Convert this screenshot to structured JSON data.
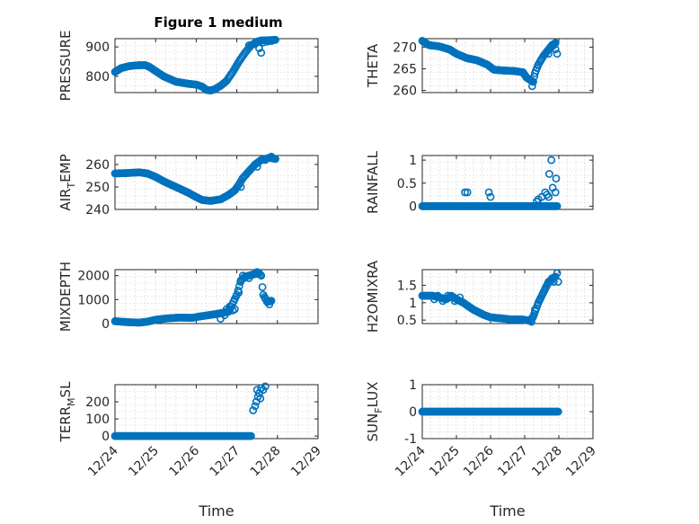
{
  "chart_data": {
    "type": "scatter",
    "title": "Figure 1 medium",
    "marker_color": "#0072BD",
    "x_unit": "days since 12/24",
    "xlim": [
      0,
      5
    ],
    "xticks": [
      0,
      1,
      2,
      3,
      4,
      5
    ],
    "xticklabels": [
      "12/24",
      "12/25",
      "12/26",
      "12/27",
      "12/28",
      "12/29"
    ],
    "xlabel": "Time",
    "panels": [
      {
        "id": "pressure",
        "ylabel": "PRESSURE",
        "ylim": [
          745,
          928
        ],
        "yticks": [
          800,
          900
        ],
        "yticklabels": [
          "800",
          "900"
        ],
        "anchors": [
          [
            0.0,
            815
          ],
          [
            0.15,
            828
          ],
          [
            0.35,
            835
          ],
          [
            0.6,
            838
          ],
          [
            0.75,
            838
          ],
          [
            0.85,
            832
          ],
          [
            1.0,
            818
          ],
          [
            1.2,
            800
          ],
          [
            1.5,
            782
          ],
          [
            1.8,
            775
          ],
          [
            2.0,
            772
          ],
          [
            2.15,
            765
          ],
          [
            2.25,
            754
          ],
          [
            2.35,
            752
          ],
          [
            2.45,
            756
          ],
          [
            2.6,
            768
          ],
          [
            2.75,
            785
          ],
          [
            2.9,
            815
          ],
          [
            3.05,
            850
          ],
          [
            3.2,
            880
          ],
          [
            3.35,
            905
          ],
          [
            3.5,
            918
          ],
          [
            3.6,
            922
          ],
          [
            3.85,
            923
          ],
          [
            3.95,
            924
          ]
        ],
        "extra": [
          [
            3.3,
            905
          ],
          [
            3.45,
            910
          ],
          [
            3.55,
            895
          ],
          [
            3.6,
            880
          ],
          [
            3.65,
            915
          ],
          [
            3.75,
            918
          ],
          [
            3.85,
            920
          ]
        ]
      },
      {
        "id": "theta",
        "ylabel": "THETA",
        "ylim": [
          259.5,
          272
        ],
        "yticks": [
          260,
          265,
          270
        ],
        "yticklabels": [
          "260",
          "265",
          "270"
        ],
        "anchors": [
          [
            0.0,
            271.5
          ],
          [
            0.2,
            270.5
          ],
          [
            0.5,
            270.2
          ],
          [
            0.8,
            269.5
          ],
          [
            1.0,
            268.5
          ],
          [
            1.3,
            267.5
          ],
          [
            1.6,
            267.0
          ],
          [
            1.9,
            266.0
          ],
          [
            2.1,
            264.8
          ],
          [
            2.4,
            264.6
          ],
          [
            2.7,
            264.5
          ],
          [
            2.95,
            264.2
          ],
          [
            3.05,
            263.0
          ],
          [
            3.15,
            262.5
          ],
          [
            3.25,
            262.0
          ],
          [
            3.3,
            264.0
          ],
          [
            3.4,
            266.0
          ],
          [
            3.55,
            268.0
          ],
          [
            3.7,
            269.5
          ],
          [
            3.8,
            270.5
          ],
          [
            3.9,
            271.0
          ]
        ],
        "extra": [
          [
            3.22,
            261.0
          ],
          [
            3.7,
            268.5
          ],
          [
            3.78,
            270.0
          ],
          [
            3.85,
            270.5
          ],
          [
            3.9,
            269.5
          ],
          [
            3.95,
            268.5
          ]
        ]
      },
      {
        "id": "air_temp",
        "ylabel": "AIR_TEMP",
        "ylabel_parts": [
          "AIR",
          "T",
          "EMP"
        ],
        "ylim": [
          240,
          264
        ],
        "yticks": [
          240,
          250,
          260
        ],
        "yticklabels": [
          "240",
          "250",
          "260"
        ],
        "anchors": [
          [
            0.0,
            256.0
          ],
          [
            0.3,
            256.2
          ],
          [
            0.6,
            256.5
          ],
          [
            0.8,
            256.0
          ],
          [
            1.0,
            254.5
          ],
          [
            1.2,
            252.5
          ],
          [
            1.5,
            250.0
          ],
          [
            1.8,
            247.5
          ],
          [
            2.0,
            245.5
          ],
          [
            2.15,
            244.2
          ],
          [
            2.35,
            243.8
          ],
          [
            2.6,
            244.5
          ],
          [
            2.8,
            246.5
          ],
          [
            2.95,
            248.5
          ],
          [
            3.05,
            251.0
          ],
          [
            3.15,
            254.0
          ],
          [
            3.3,
            257.0
          ],
          [
            3.45,
            260.0
          ],
          [
            3.6,
            262.0
          ],
          [
            3.8,
            263.0
          ],
          [
            3.95,
            262.5
          ]
        ],
        "extra": [
          [
            3.1,
            250.0
          ],
          [
            3.5,
            259.0
          ],
          [
            3.7,
            262.0
          ],
          [
            3.85,
            263.5
          ]
        ]
      },
      {
        "id": "rainfall",
        "ylabel": "RAINFALL",
        "ylim": [
          -0.07,
          1.1
        ],
        "yticks": [
          0,
          0.5,
          1
        ],
        "yticklabels": [
          "0",
          "0.5",
          "1"
        ],
        "anchors": [
          [
            0.0,
            0
          ],
          [
            3.95,
            0
          ]
        ],
        "extra": [
          [
            1.25,
            0.3
          ],
          [
            1.32,
            0.3
          ],
          [
            1.95,
            0.3
          ],
          [
            2.0,
            0.2
          ],
          [
            3.35,
            0.1
          ],
          [
            3.4,
            0.15
          ],
          [
            3.5,
            0.2
          ],
          [
            3.6,
            0.3
          ],
          [
            3.65,
            0.25
          ],
          [
            3.7,
            0.2
          ],
          [
            3.72,
            0.7
          ],
          [
            3.78,
            1.0
          ],
          [
            3.82,
            0.4
          ],
          [
            3.86,
            0.0
          ],
          [
            3.9,
            0.3
          ],
          [
            3.92,
            0.6
          ],
          [
            3.55,
            0.0
          ],
          [
            3.62,
            0.0
          ]
        ]
      },
      {
        "id": "mixdepth",
        "ylabel": "MIXDEPTH",
        "ylim": [
          0,
          2250
        ],
        "yticks": [
          0,
          1000,
          2000
        ],
        "yticklabels": [
          "0",
          "1000",
          "2000"
        ],
        "anchors": [
          [
            0.0,
            100
          ],
          [
            0.3,
            60
          ],
          [
            0.6,
            40
          ],
          [
            0.8,
            80
          ],
          [
            1.0,
            160
          ],
          [
            1.3,
            220
          ],
          [
            1.6,
            250
          ],
          [
            1.9,
            240
          ],
          [
            2.1,
            300
          ],
          [
            2.3,
            350
          ],
          [
            2.5,
            400
          ],
          [
            2.65,
            450
          ],
          [
            2.8,
            500
          ],
          [
            3.0,
            1200
          ],
          [
            3.1,
            1800
          ],
          [
            3.2,
            1950
          ],
          [
            3.4,
            2050
          ],
          [
            3.55,
            2100
          ],
          [
            3.6,
            2000
          ],
          [
            3.65,
            1200
          ],
          [
            3.75,
            900
          ],
          [
            3.85,
            950
          ]
        ],
        "extra": [
          [
            2.6,
            200
          ],
          [
            2.7,
            350
          ],
          [
            2.75,
            600
          ],
          [
            2.82,
            700
          ],
          [
            2.9,
            550
          ],
          [
            2.95,
            600
          ],
          [
            3.05,
            1300
          ],
          [
            3.15,
            2000
          ],
          [
            3.3,
            1900
          ],
          [
            3.5,
            2150
          ],
          [
            3.7,
            1050
          ],
          [
            3.8,
            800
          ]
        ]
      },
      {
        "id": "h2omixra",
        "ylabel": "H2OMIXRA",
        "ylim": [
          0.4,
          1.95
        ],
        "yticks": [
          0.5,
          1,
          1.5
        ],
        "yticklabels": [
          "0.5",
          "1",
          "1.5"
        ],
        "anchors": [
          [
            0.0,
            1.2
          ],
          [
            0.3,
            1.2
          ],
          [
            0.5,
            1.15
          ],
          [
            0.7,
            1.1
          ],
          [
            0.85,
            1.2
          ],
          [
            1.0,
            1.1
          ],
          [
            1.2,
            1.0
          ],
          [
            1.5,
            0.8
          ],
          [
            1.8,
            0.65
          ],
          [
            2.0,
            0.58
          ],
          [
            2.3,
            0.55
          ],
          [
            2.6,
            0.52
          ],
          [
            2.9,
            0.52
          ],
          [
            3.05,
            0.5
          ],
          [
            3.15,
            0.48
          ],
          [
            3.25,
            0.6
          ],
          [
            3.4,
            1.0
          ],
          [
            3.55,
            1.3
          ],
          [
            3.7,
            1.6
          ],
          [
            3.9,
            1.75
          ]
        ],
        "extra": [
          [
            0.35,
            1.1
          ],
          [
            0.45,
            1.2
          ],
          [
            0.6,
            1.05
          ],
          [
            0.75,
            1.2
          ],
          [
            0.95,
            1.05
          ],
          [
            1.1,
            1.15
          ],
          [
            3.2,
            0.45
          ],
          [
            3.3,
            0.8
          ],
          [
            3.45,
            1.1
          ],
          [
            3.6,
            1.4
          ],
          [
            3.75,
            1.6
          ],
          [
            3.8,
            1.7
          ],
          [
            3.85,
            1.6
          ],
          [
            3.95,
            1.85
          ],
          [
            3.98,
            1.6
          ]
        ]
      },
      {
        "id": "terr_msl",
        "ylabel": "TERR_MSL",
        "ylabel_parts": [
          "TERR",
          "M",
          "SL"
        ],
        "ylim": [
          -15,
          300
        ],
        "yticks": [
          0,
          100,
          200
        ],
        "yticklabels": [
          "0",
          "100",
          "200"
        ],
        "anchors": [
          [
            0.0,
            0
          ],
          [
            3.35,
            0
          ]
        ],
        "extra": [
          [
            3.4,
            150
          ],
          [
            3.45,
            175
          ],
          [
            3.48,
            200
          ],
          [
            3.52,
            230
          ],
          [
            3.55,
            250
          ],
          [
            3.6,
            280
          ],
          [
            3.65,
            270
          ],
          [
            3.7,
            290
          ],
          [
            3.5,
            270
          ],
          [
            3.58,
            220
          ]
        ]
      },
      {
        "id": "sun_flux",
        "ylabel": "SUN_FLUX",
        "ylabel_parts": [
          "SUN",
          "F",
          "LUX"
        ],
        "ylim": [
          -1,
          1
        ],
        "yticks": [
          -1,
          0,
          1
        ],
        "yticklabels": [
          "-1",
          "0",
          "1"
        ],
        "anchors": [
          [
            0.0,
            0
          ],
          [
            3.98,
            0
          ]
        ],
        "extra": []
      }
    ]
  }
}
